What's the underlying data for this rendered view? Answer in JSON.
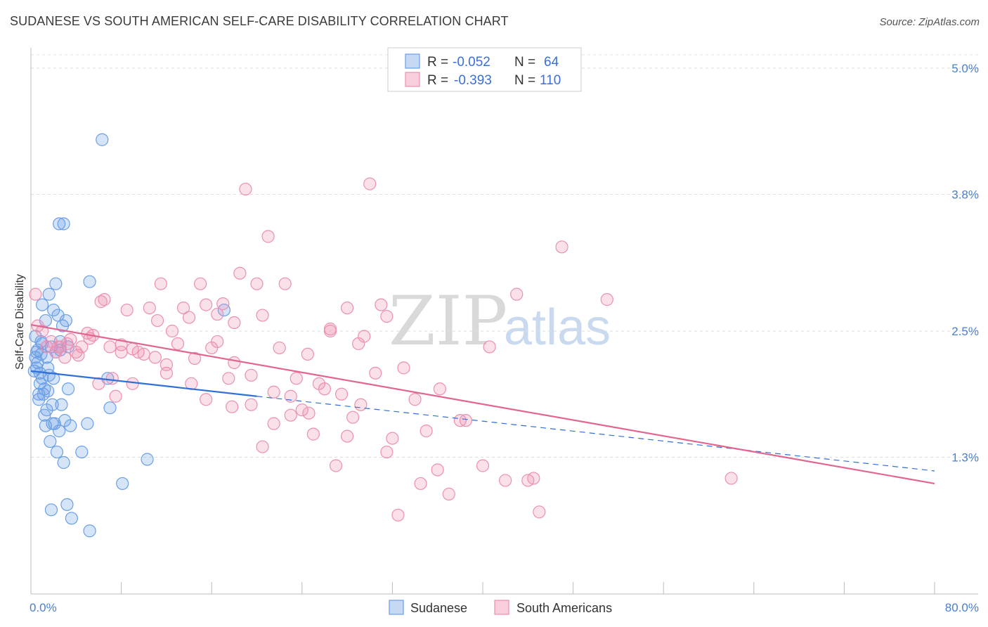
{
  "title": "SUDANESE VS SOUTH AMERICAN SELF-CARE DISABILITY CORRELATION CHART",
  "source": "Source: ZipAtlas.com",
  "watermark": {
    "zip": "ZIP",
    "atlas": "atlas"
  },
  "colors": {
    "blue": "#6a9fe6",
    "blue_line": "#2f6fd6",
    "pink": "#ec8fb0",
    "pink_line": "#e0668f"
  },
  "chart_data": {
    "type": "scatter",
    "ylabel": "Self-Care Disability",
    "xlim": [
      0,
      80
    ],
    "ylim": [
      0,
      5.25
    ],
    "x_ticks": [
      {
        "value": 0,
        "label": "0.0%"
      },
      {
        "value": 80,
        "label": "80.0%"
      }
    ],
    "y_ticks": [
      {
        "value": 1.3,
        "label": "1.3%"
      },
      {
        "value": 2.5,
        "label": "2.5%"
      },
      {
        "value": 3.8,
        "label": "3.8%"
      },
      {
        "value": 5.0,
        "label": "5.0%"
      }
    ],
    "grid": true,
    "legend_position": "top-center",
    "legend": [
      {
        "r_label": "R =",
        "r_value": "-0.052",
        "n_label": "N =",
        "n_value": "64"
      },
      {
        "r_label": "R =",
        "r_value": "-0.393",
        "n_label": "N =",
        "n_value": "110"
      }
    ],
    "series": [
      {
        "name": "Sudanese",
        "color": "#6a9fe6",
        "trend": {
          "x0": 0,
          "y0": 2.12,
          "x1": 20,
          "y1": 1.88,
          "dash_to_x": 80,
          "dash_to_y": 1.17
        },
        "points": [
          [
            0.4,
            2.25
          ],
          [
            0.6,
            2.2
          ],
          [
            0.8,
            2.1
          ],
          [
            0.5,
            2.3
          ],
          [
            1.0,
            2.05
          ],
          [
            1.2,
            1.95
          ],
          [
            0.7,
            1.9
          ],
          [
            1.5,
            2.15
          ],
          [
            0.9,
            2.4
          ],
          [
            1.8,
            2.35
          ],
          [
            2.0,
            2.7
          ],
          [
            1.6,
            2.85
          ],
          [
            2.2,
            2.95
          ],
          [
            2.4,
            2.65
          ],
          [
            2.8,
            2.55
          ],
          [
            3.1,
            2.6
          ],
          [
            2.6,
            2.4
          ],
          [
            3.3,
            2.35
          ],
          [
            1.4,
            1.75
          ],
          [
            1.9,
            1.8
          ],
          [
            2.1,
            1.62
          ],
          [
            2.5,
            1.55
          ],
          [
            3.0,
            1.65
          ],
          [
            3.5,
            1.6
          ],
          [
            1.7,
            1.45
          ],
          [
            2.3,
            1.35
          ],
          [
            2.9,
            1.25
          ],
          [
            4.5,
            1.35
          ],
          [
            5.0,
            1.62
          ],
          [
            6.8,
            2.05
          ],
          [
            7.0,
            1.77
          ],
          [
            8.1,
            1.05
          ],
          [
            10.3,
            1.28
          ],
          [
            1.8,
            0.8
          ],
          [
            3.2,
            0.85
          ],
          [
            3.6,
            0.72
          ],
          [
            5.2,
            0.6
          ],
          [
            6.3,
            4.32
          ],
          [
            2.5,
            3.52
          ],
          [
            2.9,
            3.52
          ],
          [
            5.2,
            2.97
          ],
          [
            1.0,
            2.75
          ],
          [
            1.3,
            2.6
          ],
          [
            0.3,
            2.12
          ],
          [
            0.5,
            2.15
          ],
          [
            0.9,
            2.28
          ],
          [
            1.6,
            2.08
          ],
          [
            2.2,
            2.3
          ],
          [
            0.8,
            2.0
          ],
          [
            1.1,
            1.9
          ],
          [
            1.5,
            1.93
          ],
          [
            1.2,
            1.7
          ],
          [
            1.9,
            1.62
          ],
          [
            2.7,
            1.8
          ],
          [
            3.3,
            1.95
          ],
          [
            0.4,
            2.45
          ],
          [
            0.6,
            2.32
          ],
          [
            1.0,
            2.38
          ],
          [
            1.4,
            2.25
          ],
          [
            2.0,
            2.05
          ],
          [
            2.6,
            2.32
          ],
          [
            17.1,
            2.7
          ],
          [
            0.7,
            1.85
          ],
          [
            1.3,
            1.6
          ]
        ]
      },
      {
        "name": "South Americans",
        "color": "#ec8fb0",
        "trend": {
          "x0": 0,
          "y0": 2.56,
          "x1": 80,
          "y1": 1.05
        },
        "points": [
          [
            0.4,
            2.85
          ],
          [
            0.6,
            2.55
          ],
          [
            1.0,
            2.5
          ],
          [
            1.4,
            2.35
          ],
          [
            1.8,
            2.4
          ],
          [
            2.2,
            2.3
          ],
          [
            2.6,
            2.35
          ],
          [
            3.0,
            2.25
          ],
          [
            3.5,
            2.42
          ],
          [
            4.0,
            2.3
          ],
          [
            4.5,
            2.35
          ],
          [
            5.0,
            2.48
          ],
          [
            5.5,
            2.46
          ],
          [
            6.0,
            2.0
          ],
          [
            6.5,
            2.8
          ],
          [
            7.0,
            2.35
          ],
          [
            7.5,
            1.88
          ],
          [
            8.0,
            2.3
          ],
          [
            8.5,
            2.7
          ],
          [
            9.0,
            2.33
          ],
          [
            9.5,
            2.3
          ],
          [
            10.0,
            2.28
          ],
          [
            10.5,
            2.72
          ],
          [
            11.0,
            2.25
          ],
          [
            11.5,
            2.95
          ],
          [
            12.0,
            2.18
          ],
          [
            12.5,
            2.5
          ],
          [
            13.0,
            2.38
          ],
          [
            13.5,
            2.72
          ],
          [
            14.0,
            2.63
          ],
          [
            14.5,
            2.24
          ],
          [
            15.0,
            2.95
          ],
          [
            15.5,
            2.75
          ],
          [
            16.0,
            2.34
          ],
          [
            16.5,
            2.66
          ],
          [
            17.0,
            2.76
          ],
          [
            17.5,
            2.05
          ],
          [
            18.0,
            2.58
          ],
          [
            18.5,
            3.05
          ],
          [
            19.0,
            3.85
          ],
          [
            19.5,
            2.08
          ],
          [
            20.0,
            2.95
          ],
          [
            20.5,
            2.65
          ],
          [
            21.0,
            3.4
          ],
          [
            21.5,
            1.62
          ],
          [
            22.0,
            2.34
          ],
          [
            22.5,
            2.95
          ],
          [
            23.0,
            1.88
          ],
          [
            23.5,
            2.05
          ],
          [
            24.0,
            1.75
          ],
          [
            24.5,
            2.28
          ],
          [
            25.0,
            1.52
          ],
          [
            25.5,
            2.0
          ],
          [
            26.0,
            1.95
          ],
          [
            26.5,
            2.5
          ],
          [
            27.0,
            1.22
          ],
          [
            27.5,
            1.9
          ],
          [
            28.0,
            2.72
          ],
          [
            28.5,
            1.68
          ],
          [
            29.0,
            2.38
          ],
          [
            29.5,
            2.45
          ],
          [
            30.0,
            3.9
          ],
          [
            30.5,
            2.1
          ],
          [
            31.0,
            2.75
          ],
          [
            31.5,
            2.64
          ],
          [
            32.0,
            1.48
          ],
          [
            32.5,
            0.75
          ],
          [
            33.0,
            2.15
          ],
          [
            34.0,
            1.85
          ],
          [
            35.0,
            1.55
          ],
          [
            36.0,
            1.18
          ],
          [
            37.0,
            0.95
          ],
          [
            38.0,
            1.65
          ],
          [
            38.5,
            1.65
          ],
          [
            40.0,
            1.22
          ],
          [
            42.0,
            1.08
          ],
          [
            43.0,
            2.85
          ],
          [
            44.0,
            1.08
          ],
          [
            44.5,
            1.1
          ],
          [
            45.0,
            0.78
          ],
          [
            47.0,
            3.3
          ],
          [
            51.0,
            2.8
          ],
          [
            62.0,
            1.1
          ],
          [
            8.0,
            2.37
          ],
          [
            9.0,
            2.0
          ],
          [
            12.0,
            2.1
          ],
          [
            15.5,
            1.85
          ],
          [
            16.5,
            2.4
          ],
          [
            18.0,
            2.2
          ],
          [
            19.5,
            1.8
          ],
          [
            21.5,
            1.92
          ],
          [
            23.0,
            1.7
          ],
          [
            26.5,
            2.52
          ],
          [
            28.0,
            1.5
          ],
          [
            31.5,
            1.35
          ],
          [
            34.5,
            1.05
          ],
          [
            2.4,
            2.35
          ],
          [
            3.2,
            2.38
          ],
          [
            4.2,
            2.27
          ],
          [
            5.2,
            2.43
          ],
          [
            6.2,
            2.78
          ],
          [
            7.2,
            2.05
          ],
          [
            11.2,
            2.6
          ],
          [
            14.2,
            2.0
          ],
          [
            17.8,
            1.78
          ],
          [
            20.5,
            1.4
          ],
          [
            24.6,
            1.72
          ],
          [
            29.2,
            1.8
          ],
          [
            36.2,
            1.95
          ],
          [
            40.6,
            2.35
          ]
        ]
      }
    ]
  }
}
